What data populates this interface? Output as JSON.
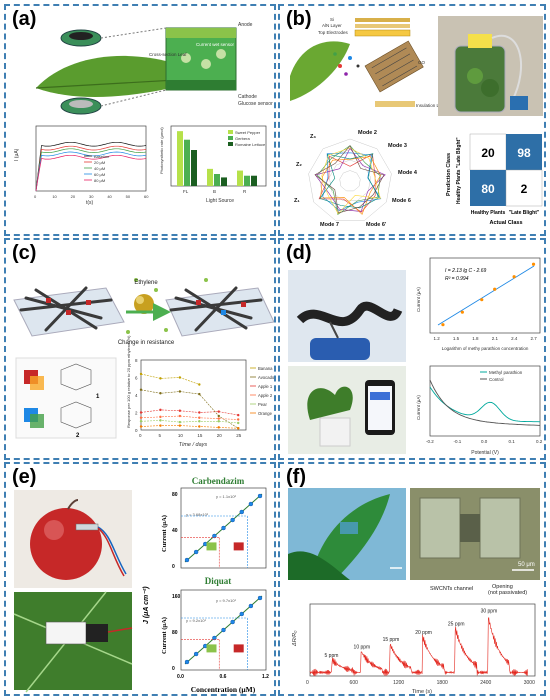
{
  "panels": {
    "a": {
      "label": "(a)",
      "diagram_labels": {
        "anode": "Anode",
        "cathode": "Cathode",
        "glucose_sensor": "Glucose sensor",
        "cross_section": "Cross-section Leaf",
        "current_wet": "Current wet sensor",
        "wet_label": "Wet"
      },
      "chart_left": {
        "ylabel": "I (μA)",
        "xlabel": "t(s)",
        "legend": [
          "Baseline",
          "20 μM",
          "40 μM",
          "60 μM",
          "80 μM"
        ],
        "xticks": [
          "0",
          "10",
          "20",
          "30",
          "40",
          "50",
          "60"
        ]
      },
      "chart_right": {
        "ylabel": "Photosynthetic rate (μmol)",
        "xlabel": "Light Source",
        "legend": [
          "Sweet Pepper",
          "Gerbera",
          "Romaine Lettuce"
        ],
        "categories": [
          "FL",
          "B",
          "R"
        ]
      }
    },
    "b": {
      "label": "(b)",
      "layers": [
        "Si",
        "AlN Layer",
        "Top Electrodes",
        "GO",
        "Insulation Layer"
      ],
      "radar_labels": [
        "Mode 2",
        "Mode 3",
        "Mode 4",
        "Mode 6",
        "Mode 6'",
        "Mode 7",
        "Z₁",
        "Z₂",
        "Z₃"
      ],
      "matrix": {
        "cells": [
          "20",
          "98",
          "80",
          "2"
        ],
        "row_title": "Prediction Class",
        "row_labels": [
          "\"Late Blight\"",
          "Healthy Plants"
        ],
        "col_labels": [
          "Healthy Plants",
          "\"Late Blight\""
        ],
        "col_title": "Actual Class"
      }
    },
    "c": {
      "label": "(c)",
      "ethylene": "Ethylene",
      "change": "Change in resistance",
      "compound1": "1",
      "compound2": "2",
      "chart": {
        "ylabel": "Response per 100 g relative to 20 ppm ethylene (%)",
        "xlabel": "Time / days",
        "legend": [
          "Banana",
          "Avocado",
          "Apple 1",
          "Apple 2",
          "Pear",
          "Orange"
        ],
        "xticks": [
          "0",
          "5",
          "10",
          "15",
          "20",
          "25"
        ],
        "yticks": [
          "0",
          "2",
          "4",
          "6",
          "8"
        ]
      }
    },
    "d": {
      "label": "(d)",
      "chart_top": {
        "equation": "I = 2.13 lg C - 2.69",
        "r2": "R² = 0.994",
        "ylabel": "Current (μA)",
        "xlabel": "Logarithm of methy parathion concentration",
        "xticks": [
          "1.2",
          "1.5",
          "1.8",
          "2.1",
          "2.4",
          "2.7"
        ]
      },
      "chart_bottom": {
        "legend": [
          "Methyl parathion",
          "Control"
        ],
        "ylabel": "Current (μA)",
        "xlabel": "Potential (V)",
        "xticks": [
          "-0.2",
          "-0.1",
          "0.0",
          "0.1",
          "0.2"
        ]
      }
    },
    "e": {
      "label": "(e)",
      "chart_top": {
        "title": "Carbendazim",
        "ylabel": "Current (μA)",
        "eq1": "y = 1.1x10²",
        "eq2": "y = 3.68x10¹",
        "yticks": [
          "0",
          "40",
          "80"
        ]
      },
      "chart_bottom": {
        "title": "Diquat",
        "ylabel": "Current (μA)",
        "eq1": "y = 9.7x10¹",
        "eq2": "y = 9.2x10¹",
        "yticks": [
          "0",
          "80",
          "160"
        ],
        "xticks": [
          "0.0",
          "0.6",
          "1.2"
        ],
        "xlabel": "Concentration (μM)"
      },
      "shared_ylabel": "J (μA cm⁻²)"
    },
    "f": {
      "label": "(f)",
      "scale": "50 μm",
      "swcnt": "SWCNTs channel",
      "opening": "Opening\n(not passivated)",
      "chart": {
        "ylabel": "ΔR/R₀",
        "xlabel": "Time (s)",
        "xticks": [
          "0",
          "600",
          "1200",
          "1800",
          "2400",
          "3000"
        ],
        "annotations": [
          "5 ppm",
          "10 ppm",
          "15 ppm",
          "20 ppm",
          "25 ppm",
          "30 ppm"
        ]
      }
    }
  },
  "colors": {
    "border": "#3f7fb3",
    "leaf": "#5a9c2e",
    "red_line": "#e2231a",
    "green_line": "#2e9b3c",
    "blue_line": "#2b6cb5",
    "matrix_dark": "#2e6fa7",
    "matrix_light": "#cfe3f3"
  }
}
